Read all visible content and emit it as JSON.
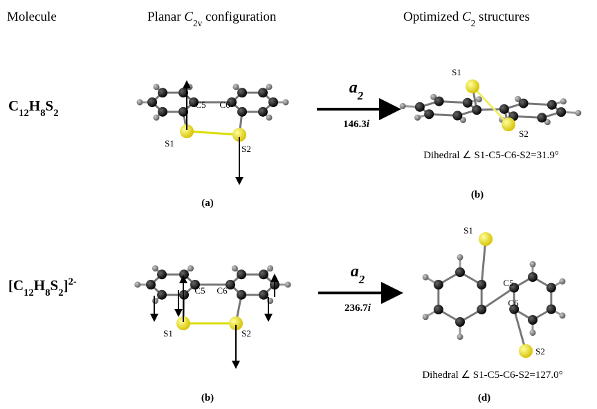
{
  "headers": {
    "molecule": "Molecule",
    "planar": [
      "Planar ",
      "C",
      "2v",
      " configuration"
    ],
    "optimized": [
      "Optimized ",
      "C",
      "2",
      " structures"
    ]
  },
  "rows": [
    {
      "formula": [
        "C",
        "12",
        "H",
        "8",
        "S",
        "2"
      ],
      "planar_atoms": [
        "C5",
        "C6",
        "S1",
        "S2"
      ],
      "mode": [
        "a",
        "2"
      ],
      "frequency": [
        "146.3",
        "i"
      ],
      "optimized_atoms": [
        "S1",
        "S2"
      ],
      "dihedral": "Dihedral ∠ S1-C5-C6-S2=31.9°",
      "panel_planar": "(a)",
      "panel_optimized": "(b)"
    },
    {
      "formula": [
        "[C",
        "12",
        "H",
        "8",
        "S",
        "2",
        "]",
        "2-"
      ],
      "planar_atoms": [
        "C5",
        "C6",
        "S1",
        "S2"
      ],
      "mode": [
        "a",
        "2"
      ],
      "frequency": [
        "236.7",
        "i"
      ],
      "optimized_atoms": [
        "S1",
        "C5",
        "C6",
        "S2"
      ],
      "dihedral": "Dihedral ∠ S1-C5-C6-S2=127.0°",
      "panel_planar": "(b)",
      "panel_optimized": "(d)"
    }
  ]
}
